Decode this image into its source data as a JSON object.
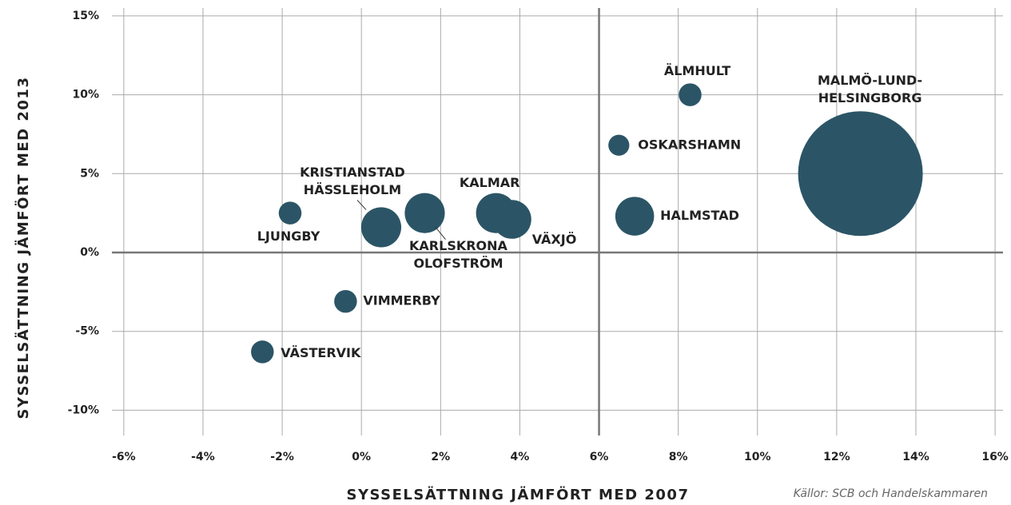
{
  "chart_data": {
    "type": "bubble",
    "x_label": "SYSSELSÄTTNING JÄMFÖRT MED 2007",
    "y_label": "SYSSELSÄTTNING JÄMFÖRT MED 2013",
    "source": "Källor: SCB och Handelskammaren",
    "color": "#2b5566",
    "labels": [
      [
        "LJUNGBY"
      ],
      [
        "KRISTIANSTAD",
        "HÄSSLEHOLM"
      ],
      [
        "KARLSKRONA",
        "OLOFSTRÖM"
      ],
      [
        "KALMAR"
      ],
      [
        "VÄXJÖ"
      ],
      [
        "OSKARSHAMN"
      ],
      [
        "HALMSTAD"
      ],
      [
        "ÄLMHULT"
      ],
      [
        "MALMÖ-LUND-",
        "HELSINGBORG"
      ],
      [
        "VIMMERBY"
      ],
      [
        "VÄSTERVIK"
      ]
    ],
    "x": [
      -1.8,
      0.5,
      1.6,
      3.4,
      3.8,
      6.5,
      6.9,
      8.3,
      12.6,
      -0.4,
      -2.5
    ],
    "y": [
      2.5,
      1.6,
      2.5,
      2.5,
      2.1,
      6.8,
      2.3,
      10.0,
      5.0,
      -3.1,
      -6.3
    ],
    "sizes": [
      20,
      62,
      62,
      62,
      58,
      17,
      58,
      20,
      600,
      20,
      20
    ],
    "xlim": [
      -6.3,
      16.2
    ],
    "ylim": [
      -11.6,
      15.5
    ],
    "xticks": [
      {
        "value": -6,
        "label": "-6%"
      },
      {
        "value": -4,
        "label": "-4%"
      },
      {
        "value": -2,
        "label": "-2%"
      },
      {
        "value": 0,
        "label": "0%"
      },
      {
        "value": 2,
        "label": "2%"
      },
      {
        "value": 4,
        "label": "4%"
      },
      {
        "value": 6,
        "label": "6%"
      },
      {
        "value": 8,
        "label": "8%"
      },
      {
        "value": 10,
        "label": "10%"
      },
      {
        "value": 12,
        "label": "12%"
      },
      {
        "value": 14,
        "label": "14%"
      },
      {
        "value": 16,
        "label": "16%"
      }
    ],
    "yticks": [
      {
        "value": -10,
        "label": "-10%"
      },
      {
        "value": -5,
        "label": "-5%"
      },
      {
        "value": 0,
        "label": "0%"
      },
      {
        "value": 5,
        "label": "5%"
      },
      {
        "value": 10,
        "label": "10%"
      },
      {
        "value": 15,
        "label": "15%"
      }
    ],
    "reference_lines": {
      "x": 6,
      "y": 0
    },
    "grid": true
  }
}
